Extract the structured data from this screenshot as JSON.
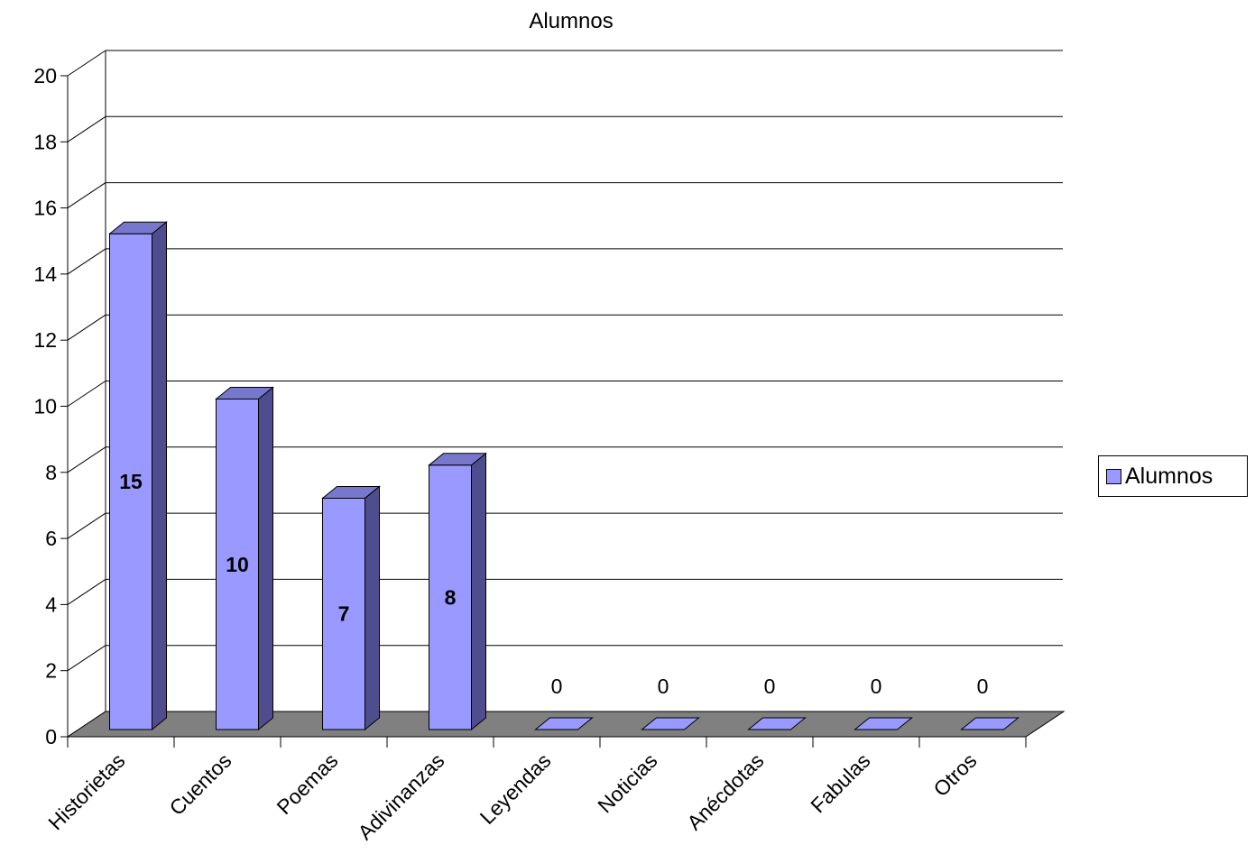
{
  "chart_data": {
    "type": "bar",
    "title": "Alumnos",
    "categories": [
      "Historietas",
      "Cuentos",
      "Poemas",
      "Adivinanzas",
      "Leyendas",
      "Noticias",
      "Anécdotas",
      "Fabulas",
      "Otros"
    ],
    "series": [
      {
        "name": "Alumnos",
        "values": [
          15,
          10,
          7,
          8,
          0,
          0,
          0,
          0,
          0
        ]
      }
    ],
    "data_labels": [
      "15",
      "10",
      "7",
      "8",
      "0",
      "0",
      "0",
      "0",
      "0"
    ],
    "ylim": [
      0,
      20
    ],
    "yticks": [
      "0",
      "2",
      "4",
      "6",
      "8",
      "10",
      "12",
      "14",
      "16",
      "18",
      "20"
    ],
    "xlabel": "",
    "ylabel": "",
    "grid": true,
    "legend_position": "right",
    "colors": {
      "bar_front": "#9999FF",
      "bar_side": "#4E4E8E",
      "bar_top": "#7777CC",
      "floor": "#808080",
      "stroke": "#000000"
    }
  },
  "legend": {
    "label": "Alumnos"
  }
}
